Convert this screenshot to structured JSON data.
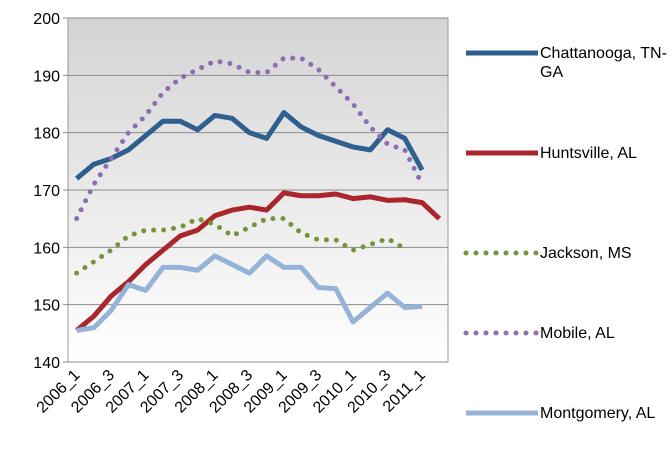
{
  "chart_data": {
    "type": "line",
    "categories": [
      "2006_1",
      null,
      "2006_3",
      null,
      "2007_1",
      null,
      "2007_3",
      null,
      "2008_1",
      null,
      "2008_3",
      null,
      "2009_1",
      null,
      "2009_3",
      null,
      "2010_1",
      null,
      "2010_3",
      null,
      "2011_1",
      null
    ],
    "series": [
      {
        "name": "Chattanooga, TN-GA",
        "color": "#2e5f8e",
        "style": "solid",
        "values": [
          172,
          174.5,
          175.5,
          177,
          179.5,
          182,
          182,
          180.5,
          183,
          182.5,
          180,
          179,
          183.5,
          181,
          179.5,
          178.5,
          177.5,
          177,
          180.5,
          179,
          173.5,
          null
        ]
      },
      {
        "name": "Huntsville, AL",
        "color": "#a8262c",
        "style": "solid",
        "values": [
          145.5,
          148,
          151.5,
          154,
          157,
          159.5,
          162,
          163,
          165.5,
          166.5,
          167,
          166.5,
          169.5,
          169,
          169,
          169.3,
          168.5,
          168.8,
          168.2,
          168.3,
          167.8,
          165
        ]
      },
      {
        "name": "Jackson, MS",
        "color": "#77933c",
        "style": "dotted",
        "values": [
          155.5,
          157.5,
          159.5,
          162,
          163,
          163,
          163.5,
          165,
          164,
          162,
          163.5,
          165,
          165,
          162.5,
          161.3,
          161.3,
          159.5,
          160.5,
          161.5,
          159.8,
          null,
          null
        ]
      },
      {
        "name": "Mobile, AL",
        "color": "#8e6db3",
        "style": "dotted",
        "values": [
          165,
          171,
          175.5,
          180,
          183,
          187,
          189.5,
          191,
          192.5,
          192,
          190.5,
          190.5,
          193,
          193,
          191,
          188,
          185,
          181,
          178,
          177,
          171,
          null
        ]
      },
      {
        "name": "Montgomery, AL",
        "color": "#95b3d7",
        "style": "solid",
        "values": [
          145.5,
          146,
          149,
          153.5,
          152.5,
          156.5,
          156.5,
          156,
          158.5,
          157,
          155.5,
          158.5,
          156.5,
          156.5,
          153,
          152.8,
          147,
          149.5,
          152,
          149.5,
          149.7,
          null
        ]
      }
    ],
    "ylim": [
      140,
      200
    ],
    "yticks": [
      140,
      150,
      160,
      170,
      180,
      190,
      200
    ],
    "grid": true
  }
}
